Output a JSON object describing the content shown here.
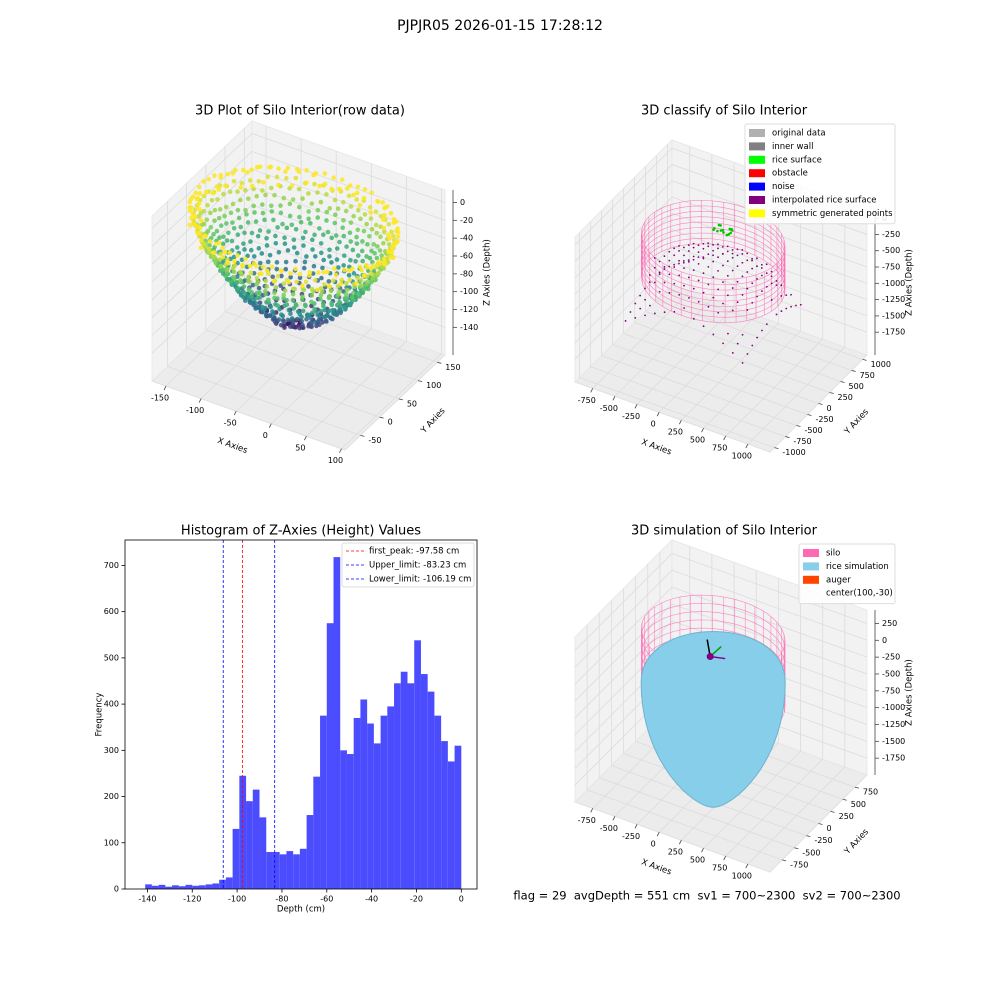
{
  "title": "PJPJR05 2026-01-15 17:28:12",
  "footer": "flag = 29  avgDepth = 551 cm  sv1 = 700~2300  sv2 = 700~2300",
  "chart_data": [
    {
      "type": "scatter3d",
      "title": "3D Plot of Silo Interior(row data)",
      "x_label": "X Axies",
      "y_label": "Y Axies",
      "z_label": "Z Axies (Depth)",
      "xlim": [
        -170,
        105
      ],
      "xticks": [
        -150,
        -100,
        -50,
        0,
        50,
        100
      ],
      "ylim": [
        -90,
        170
      ],
      "yticks": [
        -50,
        0,
        50,
        100,
        150
      ],
      "zlim": [
        -171,
        14
      ],
      "zticks": [
        0,
        -20,
        -40,
        -60,
        -80,
        -100,
        -120,
        -140
      ]
    },
    {
      "type": "classify3d",
      "title": "3D classify of Silo Interior",
      "x_label": "X Axies",
      "y_label": "Y Axies",
      "z_label": "Z Axies (Depth)",
      "xlim": [
        -950,
        1250
      ],
      "xticks": [
        -750,
        -500,
        -250,
        0,
        250,
        500,
        750,
        1000
      ],
      "ylim": [
        -1100,
        1100
      ],
      "yticks": [
        -1000,
        -750,
        -500,
        -250,
        0,
        250,
        500,
        750,
        1000
      ],
      "zlim": [
        -2100,
        125
      ],
      "zticks": [
        0,
        -250,
        -500,
        -750,
        -1000,
        -1250,
        -1500,
        -1750
      ],
      "legend": [
        {
          "name": "original data",
          "color": "#b0b0b0"
        },
        {
          "name": "inner wall",
          "color": "#808080"
        },
        {
          "name": "rice surface",
          "color": "#00ff00"
        },
        {
          "name": "obstacle",
          "color": "#ff0000"
        },
        {
          "name": "noise",
          "color": "#0000ff"
        },
        {
          "name": "interpolated rice surface",
          "color": "#800080"
        },
        {
          "name": "symmetric generated points",
          "color": "#ffff00"
        }
      ]
    },
    {
      "type": "histogram",
      "title": "Histogram of Z-Axies (Height) Values",
      "x_label": "Depth (cm)",
      "y_label": "Frequency",
      "color": "#4c4cff",
      "bins": [
        -141,
        -138,
        -135,
        -132,
        -129,
        -126,
        -123,
        -120,
        -117,
        -114,
        -111,
        -108,
        -105,
        -102,
        -99,
        -96,
        -93,
        -90,
        -87,
        -84,
        -81,
        -78,
        -75,
        -72,
        -69,
        -66,
        -63,
        -60,
        -57,
        -54,
        -51,
        -48,
        -45,
        -42,
        -39,
        -36,
        -33,
        -30,
        -27,
        -24,
        -21,
        -18,
        -15,
        -12,
        -9,
        -6,
        -3,
        0
      ],
      "counts": [
        10,
        7,
        9,
        5,
        8,
        6,
        9,
        7,
        8,
        10,
        12,
        20,
        25,
        130,
        245,
        190,
        215,
        155,
        80,
        80,
        75,
        82,
        75,
        87,
        160,
        243,
        375,
        575,
        718,
        300,
        292,
        370,
        410,
        358,
        315,
        375,
        395,
        445,
        470,
        445,
        538,
        465,
        427,
        375,
        320,
        276,
        310
      ],
      "xlim": [
        -150,
        7
      ],
      "xticks": [
        -140,
        -120,
        -100,
        -80,
        -60,
        -40,
        -20,
        0
      ],
      "ylim": [
        0,
        755
      ],
      "yticks": [
        0,
        100,
        200,
        300,
        400,
        500,
        600,
        700
      ],
      "vlines": [
        {
          "name": "first_peak: -97.58 cm",
          "value": -97.58,
          "color": "#ff0000"
        },
        {
          "name": "Upper_limit: -83.23 cm",
          "value": -83.23,
          "color": "#0000ff"
        },
        {
          "name": "Lower_limit: -106.19 cm",
          "value": -106.19,
          "color": "#0000ff"
        }
      ]
    },
    {
      "type": "simulation3d",
      "title": "3D simulation of Silo Interior",
      "x_label": "X Axies",
      "y_label": "Y Axies",
      "z_label": "Z Axies (Depth)",
      "xlim": [
        -950,
        1250
      ],
      "xticks": [
        -750,
        -500,
        -250,
        0,
        250,
        500,
        750,
        1000
      ],
      "ylim": [
        -1000,
        1000
      ],
      "yticks": [
        -750,
        -500,
        -250,
        0,
        250,
        500,
        750
      ],
      "zlim": [
        -2000,
        450
      ],
      "zticks": [
        250,
        0,
        -250,
        -500,
        -750,
        -1000,
        -1250,
        -1500,
        -1750
      ],
      "legend": [
        {
          "name": "silo",
          "color": "#ff69b4"
        },
        {
          "name": "rice simulation",
          "color": "#87ceeb"
        },
        {
          "name": "auger",
          "color": "#ff4500"
        },
        {
          "name": "center(100,-30)"
        }
      ]
    }
  ]
}
